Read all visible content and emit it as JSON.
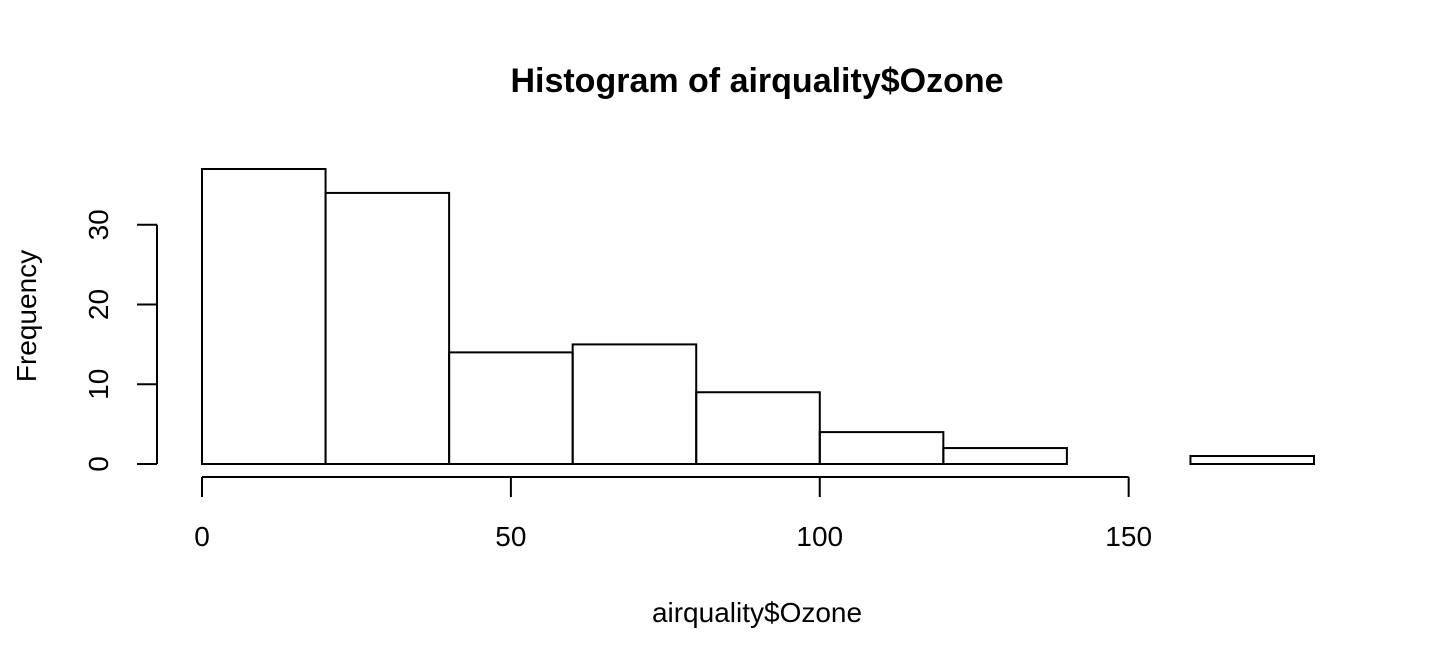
{
  "chart_data": {
    "type": "bar",
    "title": "Histogram of airquality$Ozone",
    "xlabel": "airquality$Ozone",
    "ylabel": "Frequency",
    "bins": [
      {
        "from": 0,
        "to": 20,
        "count": 37
      },
      {
        "from": 20,
        "to": 40,
        "count": 34
      },
      {
        "from": 40,
        "to": 60,
        "count": 14
      },
      {
        "from": 60,
        "to": 80,
        "count": 15
      },
      {
        "from": 80,
        "to": 100,
        "count": 9
      },
      {
        "from": 100,
        "to": 120,
        "count": 4
      },
      {
        "from": 120,
        "to": 140,
        "count": 2
      },
      {
        "from": 140,
        "to": 160,
        "count": 0
      },
      {
        "from": 160,
        "to": 180,
        "count": 1
      }
    ],
    "xlim": [
      0,
      180
    ],
    "ylim": [
      0,
      37
    ],
    "x_ticks": [
      0,
      50,
      100,
      150
    ],
    "y_ticks": [
      0,
      10,
      20,
      30
    ],
    "grid": false,
    "bar_fill": "#ffffff",
    "bar_stroke": "#000000"
  }
}
